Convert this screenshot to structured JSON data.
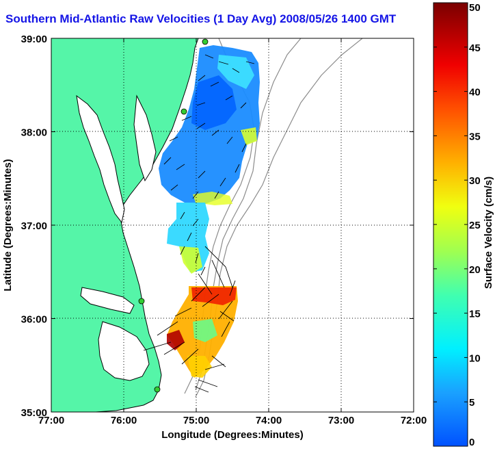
{
  "title": "Southern Mid-Atlantic Raw Velocities (1 Day Avg) 2008/05/26 1400 GMT",
  "chart_data": {
    "type": "heatmap",
    "title": "Southern Mid-Atlantic Raw Velocities (1 Day Avg) 2008/05/26 1400 GMT",
    "xlabel": "Longitude (Degrees:Minutes)",
    "ylabel": "Latitude (Degrees:Minutes)",
    "xlim": [
      -77,
      -72
    ],
    "ylim": [
      35,
      39
    ],
    "x_ticks": [
      {
        "value": -77,
        "label": "77:00"
      },
      {
        "value": -76,
        "label": "76:00"
      },
      {
        "value": -75,
        "label": "75:00"
      },
      {
        "value": -74,
        "label": "74:00"
      },
      {
        "value": -73,
        "label": "73:00"
      },
      {
        "value": -72,
        "label": "72:00"
      }
    ],
    "y_ticks": [
      {
        "value": 35,
        "label": "35:00"
      },
      {
        "value": 36,
        "label": "36:00"
      },
      {
        "value": 37,
        "label": "37:00"
      },
      {
        "value": 38,
        "label": "38:00"
      },
      {
        "value": 39,
        "label": "39:00"
      }
    ],
    "grid": true,
    "colorbar": {
      "label": "Surface Velocity (cm/s)",
      "min": 0,
      "max": 50,
      "ticks": [
        {
          "value": 0,
          "label": "0"
        },
        {
          "value": 5,
          "label": "5"
        },
        {
          "value": 10,
          "label": "10"
        },
        {
          "value": 15,
          "label": "15"
        },
        {
          "value": 20,
          "label": "20"
        },
        {
          "value": 25,
          "label": "25"
        },
        {
          "value": 30,
          "label": "30"
        },
        {
          "value": 35,
          "label": "35"
        },
        {
          "value": 40,
          "label": "40"
        },
        {
          "value": 45,
          "label": "45"
        },
        {
          "value": 50,
          "label": "50"
        }
      ]
    }
  },
  "colors": {
    "land": "#55f5a8",
    "coastline": "#000000",
    "bathymetry": "#8c8c8c",
    "grid": "#000000",
    "station": "#33cc33",
    "title": "#1414e6"
  }
}
